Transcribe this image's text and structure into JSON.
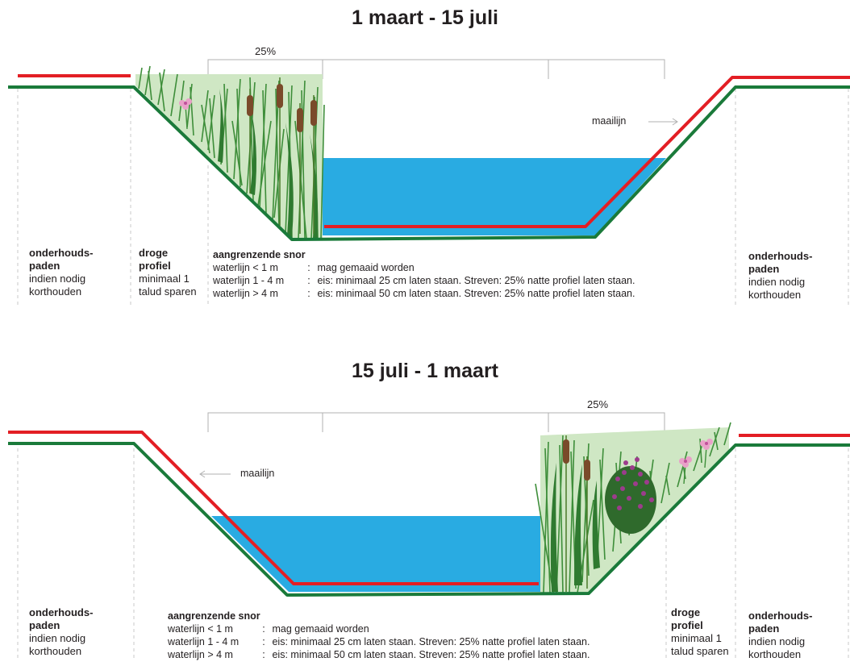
{
  "colors": {
    "water": "#29abe2",
    "bank_line": "#1a7a3a",
    "mow_line": "#e31e24",
    "vegetation": "#3e8e3a",
    "cattail": "#7a4a2a",
    "flower_pink": "#e9a0c8",
    "flower_purple": "#9c3c8c"
  },
  "top": {
    "title": "1 maart - 15 juli",
    "percent_label": "25%",
    "mow_line_label": "maailijn",
    "paths_left": {
      "heading": "onderhouds-",
      "heading2": "paden",
      "line1": "indien nodig",
      "line2": "korthouden"
    },
    "dry_profile": {
      "heading": "droge",
      "heading2": "profiel",
      "line1": "minimaal 1",
      "line2": "talud sparen"
    },
    "snor": {
      "heading": "aangrenzende snor",
      "rows": [
        {
          "cond": "waterlijn < 1 m",
          "sep": ":",
          "rule": "mag gemaaid worden"
        },
        {
          "cond": "waterlijn 1 - 4 m",
          "sep": ":",
          "rule": "eis: minimaal 25 cm laten staan. Streven: 25% natte profiel laten staan."
        },
        {
          "cond": "waterlijn > 4 m",
          "sep": ":",
          "rule": "eis: minimaal 50 cm laten staan. Streven: 25% natte profiel laten staan."
        }
      ]
    },
    "paths_right": {
      "heading": "onderhouds-",
      "heading2": "paden",
      "line1": "indien nodig",
      "line2": "korthouden"
    }
  },
  "bottom": {
    "title": "15 juli - 1 maart",
    "percent_label": "25%",
    "mow_line_label": "maailijn",
    "paths_left": {
      "heading": "onderhouds-",
      "heading2": "paden",
      "line1": "indien nodig",
      "line2": "korthouden"
    },
    "snor": {
      "heading": "aangrenzende snor",
      "rows": [
        {
          "cond": "waterlijn < 1 m",
          "sep": ":",
          "rule": "mag gemaaid worden"
        },
        {
          "cond": "waterlijn 1 - 4 m",
          "sep": ":",
          "rule": "eis: minimaal 25 cm laten staan. Streven: 25% natte profiel laten staan."
        },
        {
          "cond": "waterlijn > 4 m",
          "sep": ":",
          "rule": "eis: minimaal 50 cm laten staan. Streven: 25% natte profiel laten staan."
        }
      ]
    },
    "dry_profile": {
      "heading": "droge",
      "heading2": "profiel",
      "line1": "minimaal 1",
      "line2": "talud sparen"
    },
    "paths_right": {
      "heading": "onderhouds-",
      "heading2": "paden",
      "line1": "indien nodig",
      "line2": "korthouden"
    }
  }
}
